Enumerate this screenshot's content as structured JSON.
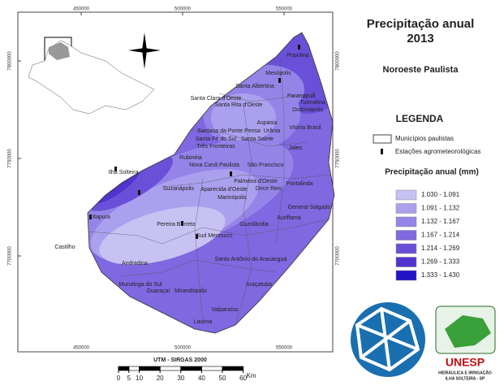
{
  "title": {
    "line1": "Precipitação  anual",
    "line2": "2013",
    "region": "Noroeste Paulista"
  },
  "coordinates": {
    "x": [
      450000,
      500000,
      550000
    ],
    "y": [
      7800000,
      7750000,
      7700000
    ]
  },
  "municipalities": [
    "Populina",
    "Mesópolis",
    "Santa Albertina",
    "Paranapuã",
    "Turmalina",
    "Santa Clara d'Oeste",
    "Santa Rita d'Oeste",
    "Dolcinópolis",
    "Aspásia",
    "Vitória Brasil",
    "Santana da Ponte Pensa",
    "Urânia",
    "Santa Fé do Sul",
    "Santa Salete",
    "Três Fronteiras",
    "Jales",
    "Rubinéia",
    "Nova Canã Paulista",
    "São Francisco",
    "Ilha Solteira",
    "Palmeira d'Oeste",
    "Pontalinda",
    "Suzanápolis",
    "Aparecida d'Oeste",
    "Dirce Reis",
    "Marinópolis",
    "General Salgado",
    "Itapura",
    "Auriflama",
    "Pereira Barreto",
    "Guzolândia",
    "Sud Mennucci",
    "Castilho",
    "Santo Antônio do Aracanguá",
    "Andradina",
    "Murutinga do Sul",
    "Guaraçaí",
    "Mirandópolis",
    "Araçatuba",
    "Valparaíso",
    "Lavínia"
  ],
  "legend": {
    "title": "LEGENDA",
    "municipalities_label": "Municípios paulistas",
    "stations_label": "Estações agrometeorológicas",
    "precip_title": "Precipitação anual (mm)",
    "classes": [
      {
        "label": "1.030 - 1.091",
        "color": "#c8c2f3"
      },
      {
        "label": "1.091 - 1.132",
        "color": "#aba0ee"
      },
      {
        "label": "1.132 - 1.167",
        "color": "#9584e8"
      },
      {
        "label": "1.167 - 1.214",
        "color": "#7f68e0"
      },
      {
        "label": "1.214 - 1.269",
        "color": "#6a50d8"
      },
      {
        "label": "1.269 - 1.333",
        "color": "#5034ce"
      },
      {
        "label": "1.333 - 1.430",
        "color": "#2313c6"
      }
    ]
  },
  "scale": {
    "title": "UTM - SIRGAS 2000",
    "ticks": [
      0,
      5,
      10,
      20,
      30,
      40,
      50,
      60
    ],
    "unit": "Km"
  },
  "logo": {
    "name": "UNESP",
    "line1": "HIDRÁULICA E IRRIGAÇÃO",
    "line2": "ILHA SOLTEIRA - SP"
  }
}
